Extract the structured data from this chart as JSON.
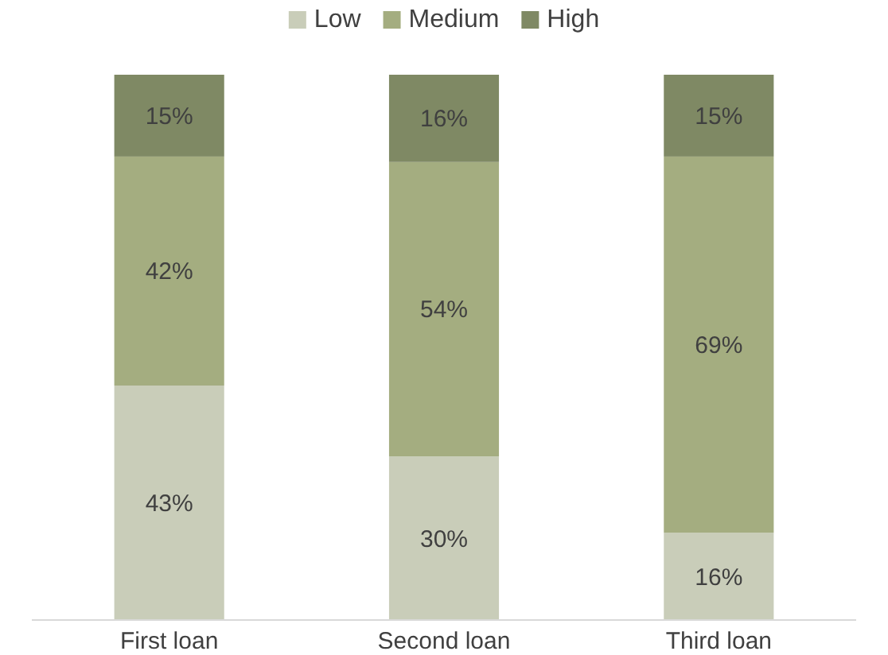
{
  "chart_data": {
    "type": "bar",
    "stacked": true,
    "categories": [
      "First loan",
      "Second loan",
      "Third loan"
    ],
    "ylim": [
      0,
      100
    ],
    "tick_labels": "x",
    "legend": "top",
    "series": [
      {
        "name": "Low",
        "color": "#c9cdb9",
        "values": [
          43,
          30,
          16
        ],
        "value_labels": [
          "43%",
          "30%",
          "16%"
        ]
      },
      {
        "name": "Medium",
        "color": "#a4ad80",
        "values": [
          42,
          54,
          69
        ],
        "value_labels": [
          "42%",
          "54%",
          "69%"
        ]
      },
      {
        "name": "High",
        "color": "#7f8964",
        "values": [
          15,
          16,
          15
        ],
        "value_labels": [
          "15%",
          "16%",
          "15%"
        ]
      }
    ]
  }
}
